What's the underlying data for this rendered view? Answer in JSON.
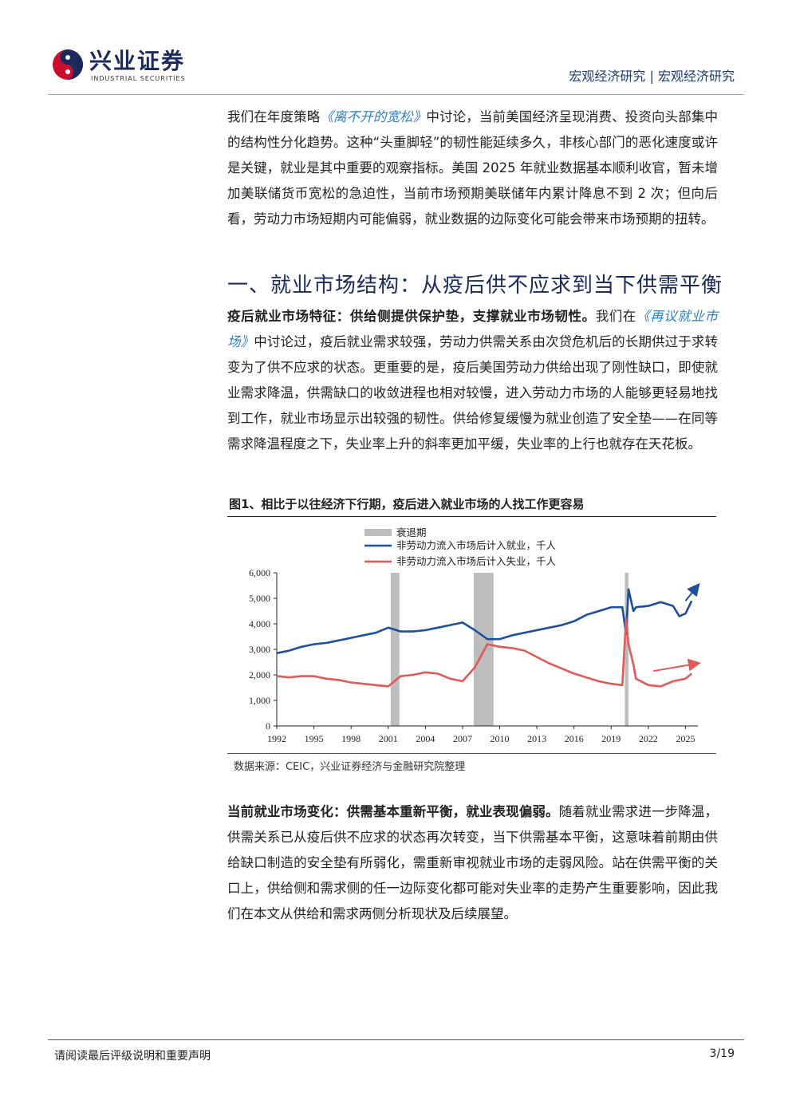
{
  "header": {
    "brand": "兴业证券",
    "brand_en": "INDUSTRIAL SECURITIES",
    "section": "宏观经济研究 | 宏观经济研究"
  },
  "para1": {
    "pre": "我们在年度策略",
    "link": "《离不开的宽松》",
    "post": "中讨论，当前美国经济呈现消费、投资向头部集中的结构性分化趋势。这种“头重脚轻”的韧性能延续多久，非核心部门的恶化速度或许是关键，就业是其中重要的观察指标。美国 2025 年就业数据基本顺利收官，暂未增加美联储货币宽松的急迫性，当前市场预期美联储年内累计降息不到 2 次；但向后看，劳动力市场短期内可能偏弱，就业数据的边际变化可能会带来市场预期的扭转。"
  },
  "heading": "一、就业市场结构：从疫后供不应求到当下供需平衡",
  "para2": {
    "bold": "疫后就业市场特征：供给侧提供保护垫，支撑就业市场韧性。",
    "pre": "我们在",
    "link": "《再议就业市场》",
    "post": "中讨论过，疫后就业需求较强，劳动力供需关系由次贷危机后的长期供过于求转变为了供不应求的状态。更重要的是，疫后美国劳动力供给出现了刚性缺口，即使就业需求降温，供需缺口的收敛进程也相对较慢，进入劳动力市场的人能够更轻易地找到工作，就业市场显示出较强的韧性。供给修复缓慢为就业创造了安全垫——在同等需求降温程度之下，失业率上升的斜率更加平缓，失业率的上行也就存在天花板。"
  },
  "figure": {
    "title": "图1、相比于以往经济下行期，疫后进入就业市场的人找工作更容易",
    "source": "数据来源：CEIC，兴业证券经济与金融研究院整理"
  },
  "chart_data": {
    "type": "line",
    "title": "",
    "xlabel": "",
    "ylabel": "",
    "xlim": [
      1992,
      2026
    ],
    "ylim": [
      0,
      6000
    ],
    "x_ticks": [
      "1992",
      "1995",
      "1998",
      "2001",
      "2004",
      "2007",
      "2010",
      "2013",
      "2016",
      "2019",
      "2022",
      "2025"
    ],
    "y_ticks": [
      "0",
      "1,000",
      "2,000",
      "3,000",
      "4,000",
      "5,000",
      "6,000"
    ],
    "legend_placement": "top",
    "recessions": [
      [
        2001.2,
        2001.9
      ],
      [
        2007.9,
        2009.5
      ],
      [
        2020.1,
        2020.4
      ]
    ],
    "recession_label": "衰退期",
    "recession_color": "#bdbdbd",
    "series": [
      {
        "name": "非劳动力流入市场后计入就业，千人",
        "color": "#1f4e9c",
        "x": [
          1992,
          1993,
          1994,
          1995,
          1996,
          1997,
          1998,
          1999,
          2000,
          2001,
          2002,
          2003,
          2004,
          2005,
          2006,
          2007,
          2008,
          2009,
          2010,
          2011,
          2012,
          2013,
          2014,
          2015,
          2016,
          2017,
          2018,
          2019,
          2019.9,
          2020.2,
          2020.4,
          2020.8,
          2021,
          2022,
          2023,
          2024,
          2024.5,
          2025,
          2025.5
        ],
        "values": [
          2850,
          2950,
          3100,
          3200,
          3250,
          3350,
          3450,
          3550,
          3650,
          3850,
          3700,
          3700,
          3750,
          3850,
          3950,
          4050,
          3750,
          3400,
          3400,
          3550,
          3650,
          3750,
          3850,
          3950,
          4100,
          4350,
          4500,
          4650,
          4650,
          3600,
          5350,
          4500,
          4650,
          4700,
          4850,
          4700,
          4300,
          4400,
          4900
        ]
      },
      {
        "name": "非劳动力流入市场后计入失业，千人",
        "color": "#e05a5a",
        "x": [
          1992,
          1993,
          1994,
          1995,
          1996,
          1997,
          1998,
          1999,
          2000,
          2001,
          2002,
          2003,
          2004,
          2005,
          2006,
          2007,
          2008,
          2009,
          2010,
          2011,
          2012,
          2013,
          2014,
          2015,
          2016,
          2017,
          2018,
          2019,
          2019.9,
          2020.2,
          2020.4,
          2020.8,
          2021,
          2022,
          2023,
          2024,
          2025,
          2025.5
        ],
        "values": [
          1950,
          1900,
          1950,
          1950,
          1850,
          1800,
          1700,
          1650,
          1600,
          1550,
          1950,
          2000,
          2100,
          2050,
          1850,
          1750,
          2300,
          3200,
          3100,
          3050,
          2950,
          2700,
          2450,
          2250,
          2050,
          1900,
          1750,
          1650,
          1600,
          4200,
          3200,
          2400,
          1850,
          1600,
          1550,
          1750,
          1850,
          2050
        ]
      }
    ]
  },
  "para3": {
    "bold": "当前就业市场变化：供需基本重新平衡，就业表现偏弱。",
    "post": "随着就业需求进一步降温，供需关系已从疫后供不应求的状态再次转变，当下供需基本平衡，这意味着前期由供给缺口制造的安全垫有所弱化，需重新审视就业市场的走弱风险。站在供需平衡的关口上，供给侧和需求侧的任一边际变化都可能对失业率的走势产生重要影响，因此我们在本文从供给和需求两侧分析现状及后续展望。"
  },
  "footer": {
    "left": "请阅读最后评级说明和重要声明",
    "page": "3/19"
  }
}
